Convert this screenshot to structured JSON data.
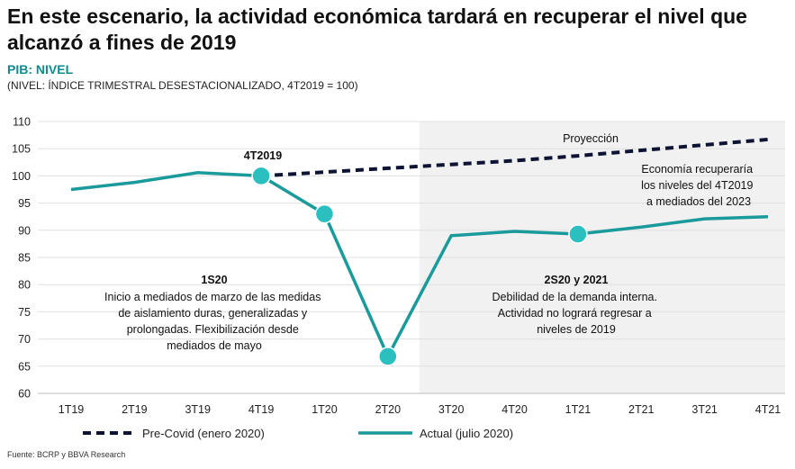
{
  "header": {
    "title": "En este escenario, la actividad económica tardará en recuperar el nivel que alcanzó a fines de 2019",
    "subtitle": "PIB: NIVEL",
    "note": "(NIVEL: ÍNDICE TRIMESTRAL DESESTACIONALIZADO, 4T2019 = 100)"
  },
  "source": "Fuente: BCRP y BBVA Research",
  "colors": {
    "actual": "#1a9a9a",
    "marker": "#2bbfbf",
    "precovid": "#0d1333",
    "projection_bg": "#f1f1f1"
  },
  "chart_data": {
    "type": "line",
    "categories": [
      "1T19",
      "2T19",
      "3T19",
      "4T19",
      "1T20",
      "2T20",
      "3T20",
      "4T20",
      "1T21",
      "2T21",
      "3T21",
      "4T21"
    ],
    "ylim": [
      60,
      110
    ],
    "yticks": [
      "60",
      "65",
      "70",
      "75",
      "80",
      "85",
      "90",
      "95",
      "100",
      "105",
      "110"
    ],
    "grid": true,
    "legend_position": "bottom",
    "series": [
      {
        "name": "Pre-Covid (enero 2020)",
        "style": "dashed",
        "start_index": 3,
        "values": [
          null,
          null,
          null,
          100,
          100.7,
          101.4,
          102.1,
          102.8,
          103.7,
          104.7,
          105.7,
          106.7
        ]
      },
      {
        "name": "Actual (julio 2020)",
        "style": "solid",
        "values": [
          97.5,
          98.8,
          100.6,
          100,
          93,
          66.8,
          89,
          89.8,
          89.3,
          90.6,
          92.1,
          92.5
        ],
        "markers": [
          3,
          4,
          5,
          8
        ]
      }
    ],
    "projection_start": "3T20",
    "annotations": {
      "proyeccion": "Proyección",
      "q4_2019": "4T2019",
      "recovery": [
        "Economía recuperaría",
        "los niveles del 4T2019",
        "a mediados del 2023"
      ],
      "s1_title": "1S20",
      "s1_text": [
        "Inicio a mediados de marzo de las medidas",
        "de aislamiento duras, generalizadas y",
        "prolongadas. Flexibilización desde",
        "mediados de mayo"
      ],
      "s2_title": "2S20 y 2021",
      "s2_text": [
        "Debilidad de la demanda interna.",
        "Actividad no logrará regresar a",
        "niveles de 2019"
      ]
    }
  }
}
